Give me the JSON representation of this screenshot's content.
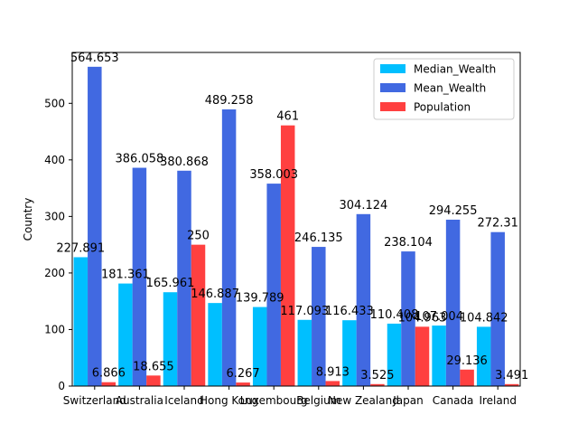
{
  "chart_data": {
    "type": "bar",
    "title": "",
    "xlabel": "",
    "ylabel": "Country",
    "ylim": [
      0,
      590
    ],
    "yticks": [
      0,
      100,
      200,
      300,
      400,
      500
    ],
    "grid": false,
    "legend_position": "top-right",
    "categories": [
      "Switzerland",
      "Australia",
      "Iceland",
      "Hong Kong",
      "Luxembourg",
      "Belgium",
      "New Zealand",
      "Japan",
      "Canada",
      "Ireland"
    ],
    "series": [
      {
        "name": "Median_Wealth",
        "color": "#00bfff",
        "values": [
          227.891,
          181.361,
          165.961,
          146.887,
          139.789,
          117.093,
          116.433,
          110.408,
          107.004,
          104.842
        ],
        "labels": [
          "227.891",
          "181.361",
          "165.961",
          "146.887",
          "139.789",
          "117.093",
          "116.433",
          "110.408",
          "107.004",
          "104.842"
        ]
      },
      {
        "name": "Mean_Wealth",
        "color": "#4169e1",
        "values": [
          564.653,
          386.058,
          380.868,
          489.258,
          358.003,
          246.135,
          304.124,
          238.104,
          294.255,
          272.31
        ],
        "labels": [
          "564.653",
          "386.058",
          "380.868",
          "489.258",
          "358.003",
          "246.135",
          "304.124",
          "238.104",
          "294.255",
          "272.31"
        ]
      },
      {
        "name": "Population",
        "color": "#ff4040",
        "values": [
          6.866,
          18.655,
          250,
          6.267,
          461,
          8.913,
          3.525,
          104.963,
          29.136,
          3.491
        ],
        "labels": [
          "6.866",
          "18.655",
          "250",
          "6.267",
          "461",
          "8.913",
          "3.525",
          "104.963",
          "29.136",
          "3.491"
        ]
      }
    ]
  }
}
